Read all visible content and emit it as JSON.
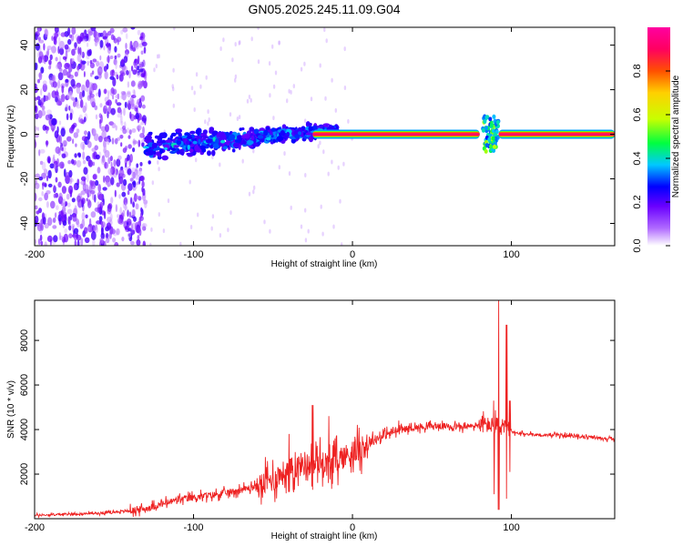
{
  "chart_data": [
    {
      "type": "heatmap",
      "title": "GN05.2025.245.11.09.G04",
      "xlabel": "Height of straight line (km)",
      "ylabel": "Frequency (Hz)",
      "xlim": [
        -200,
        165
      ],
      "ylim": [
        -50,
        48
      ],
      "xticks": [
        "-200",
        "-100",
        "0",
        "100"
      ],
      "yticks": [
        "-40",
        "-20",
        "0",
        "20",
        "40"
      ],
      "colorbar": {
        "label": "Normalized spectral amplitude",
        "range": [
          0,
          1
        ],
        "ticks": [
          "0.0",
          "0.2",
          "0.4",
          "0.6",
          "0.8"
        ],
        "colors": [
          "#ffffff",
          "#b06aff",
          "#6a00ff",
          "#0000ff",
          "#00c8ff",
          "#00ff40",
          "#c8ff00",
          "#ffd000",
          "#ff5000",
          "#ff0060",
          "#ff00a0"
        ]
      },
      "features": [
        {
          "segment": "scattered noise",
          "x": [
            -200,
            -130
          ],
          "freq_hz": [
            -50,
            48
          ],
          "amplitude": [
            0.05,
            0.25
          ]
        },
        {
          "segment": "diffuse band",
          "x": [
            -130,
            -10
          ],
          "freq_hz_center": [
            -6,
            2
          ],
          "spread_hz": 8,
          "amplitude": [
            0.2,
            0.45
          ]
        },
        {
          "segment": "tracking line",
          "x": [
            -25,
            80
          ],
          "freq_hz": 0,
          "amplitude": 1.0
        },
        {
          "segment": "disturbance",
          "x": [
            82,
            92
          ],
          "freq_hz": [
            -8,
            8
          ],
          "amplitude": [
            0.3,
            0.6
          ]
        },
        {
          "segment": "tracking line",
          "x": [
            92,
            165
          ],
          "freq_hz": 0,
          "amplitude": 1.0
        }
      ]
    },
    {
      "type": "line",
      "xlabel": "Height of straight line (km)",
      "ylabel": "SNR (10 * v/v)",
      "xlim": [
        -200,
        165
      ],
      "ylim": [
        0,
        9800
      ],
      "xticks": [
        "-200",
        "-100",
        "0",
        "100"
      ],
      "yticks": [
        "2000",
        "4000",
        "6000",
        "8000"
      ],
      "color": "#ee2222",
      "series": [
        {
          "x": [
            -200,
            -180,
            -160,
            -140,
            -130,
            -120,
            -110,
            -100,
            -90,
            -80,
            -70,
            -60,
            -50,
            -45,
            -40,
            -35,
            -30,
            -25,
            -20,
            -15,
            -10,
            -5,
            0,
            5,
            10,
            20,
            30,
            40,
            50,
            60,
            70,
            80,
            85,
            88,
            90,
            92,
            94,
            96,
            98,
            100,
            105,
            110,
            120,
            130,
            140,
            150,
            160,
            165
          ],
          "y": [
            150,
            200,
            250,
            350,
            450,
            650,
            850,
            950,
            1050,
            1150,
            1300,
            1450,
            1750,
            2000,
            2150,
            2350,
            2500,
            2350,
            2600,
            2400,
            2600,
            2800,
            3000,
            3100,
            3400,
            3750,
            4000,
            4100,
            4150,
            4150,
            4100,
            4200,
            4200,
            4200,
            4200,
            4200,
            4200,
            4200,
            4000,
            3900,
            3800,
            3800,
            3750,
            3750,
            3700,
            3650,
            3600,
            3550
          ],
          "spikes": [
            {
              "x": 92,
              "max": 9800,
              "min": 400
            },
            {
              "x": 89,
              "max": 5300,
              "min": 1100
            },
            {
              "x": 97,
              "max": 8700,
              "min": 900
            },
            {
              "x": 99,
              "max": 5300,
              "min": 2100
            },
            {
              "x": -25,
              "max": 5100,
              "min": 1300
            },
            {
              "x": -40,
              "max": 3800,
              "min": 1200
            },
            {
              "x": -15,
              "max": 4600,
              "min": 1600
            }
          ]
        }
      ]
    }
  ]
}
